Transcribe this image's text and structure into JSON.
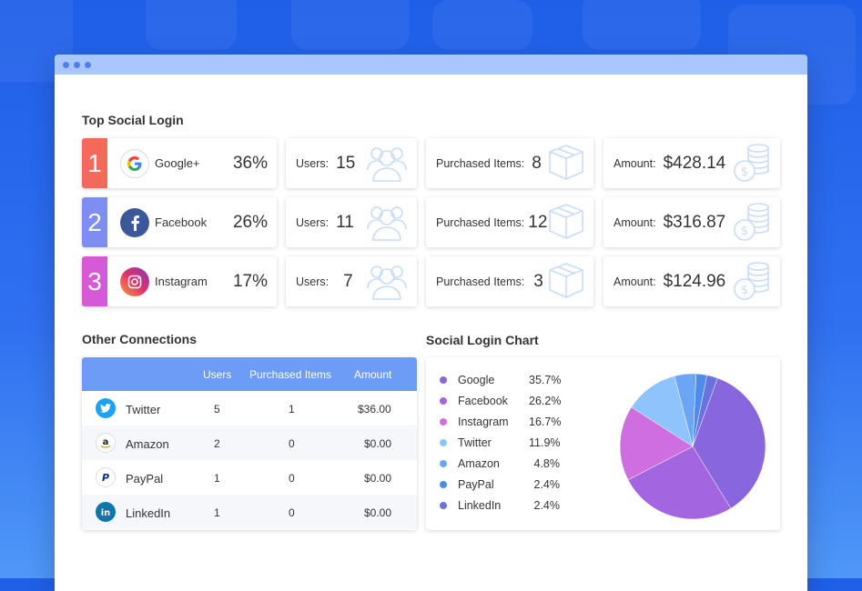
{
  "top_section": {
    "title": "Top Social Login",
    "rows": [
      {
        "rank": "1",
        "rank_color": "#f4695a",
        "network": "Google+",
        "icon": "google-icon",
        "percent": "36%",
        "users_label": "Users:",
        "users": "15",
        "items_label": "Purchased Items:",
        "items": "8",
        "amount_label": "Amount:",
        "amount": "$428.14"
      },
      {
        "rank": "2",
        "rank_color": "#7d8df2",
        "network": "Facebook",
        "icon": "facebook-icon",
        "percent": "26%",
        "users_label": "Users:",
        "users": "11",
        "items_label": "Purchased Items:",
        "items": "12",
        "amount_label": "Amount:",
        "amount": "$316.87"
      },
      {
        "rank": "3",
        "rank_color": "#d65ad8",
        "network": "Instagram",
        "icon": "instagram-icon",
        "percent": "17%",
        "users_label": "Users:",
        "users": "7",
        "items_label": "Purchased Items:",
        "items": "3",
        "amount_label": "Amount:",
        "amount": "$124.96"
      }
    ]
  },
  "connections": {
    "title": "Other Connections",
    "headers": {
      "users": "Users",
      "items": "Purchased Items",
      "amount": "Amount"
    },
    "rows": [
      {
        "name": "Twitter",
        "icon": "twitter-icon",
        "users": "5",
        "items": "1",
        "amount": "$36.00"
      },
      {
        "name": "Amazon",
        "icon": "amazon-icon",
        "users": "2",
        "items": "0",
        "amount": "$0.00"
      },
      {
        "name": "PayPal",
        "icon": "paypal-icon",
        "users": "1",
        "items": "0",
        "amount": "$0.00"
      },
      {
        "name": "LinkedIn",
        "icon": "linkedin-icon",
        "users": "1",
        "items": "0",
        "amount": "$0.00"
      }
    ]
  },
  "chart_section": {
    "title": "Social Login Chart",
    "legend": [
      {
        "name": "Google",
        "value": "35.7%"
      },
      {
        "name": "Facebook",
        "value": "26.2%"
      },
      {
        "name": "Instagram",
        "value": "16.7%"
      },
      {
        "name": "Twitter",
        "value": "11.9%"
      },
      {
        "name": "Amazon",
        "value": "4.8%"
      },
      {
        "name": "PayPal",
        "value": "2.4%"
      },
      {
        "name": "LinkedIn",
        "value": "2.4%"
      }
    ]
  },
  "chart_data": {
    "type": "pie",
    "categories": [
      "Google",
      "Facebook",
      "Instagram",
      "Twitter",
      "Amazon",
      "PayPal",
      "LinkedIn"
    ],
    "values": [
      35.7,
      26.2,
      16.7,
      11.9,
      4.8,
      2.4,
      2.4
    ],
    "colors": [
      "#8866dd",
      "#a466e0",
      "#cf6ee0",
      "#8fc3fb",
      "#6aa6f5",
      "#4e8ce8",
      "#6a72de"
    ],
    "title": "Social Login Chart",
    "legend_position": "left"
  }
}
